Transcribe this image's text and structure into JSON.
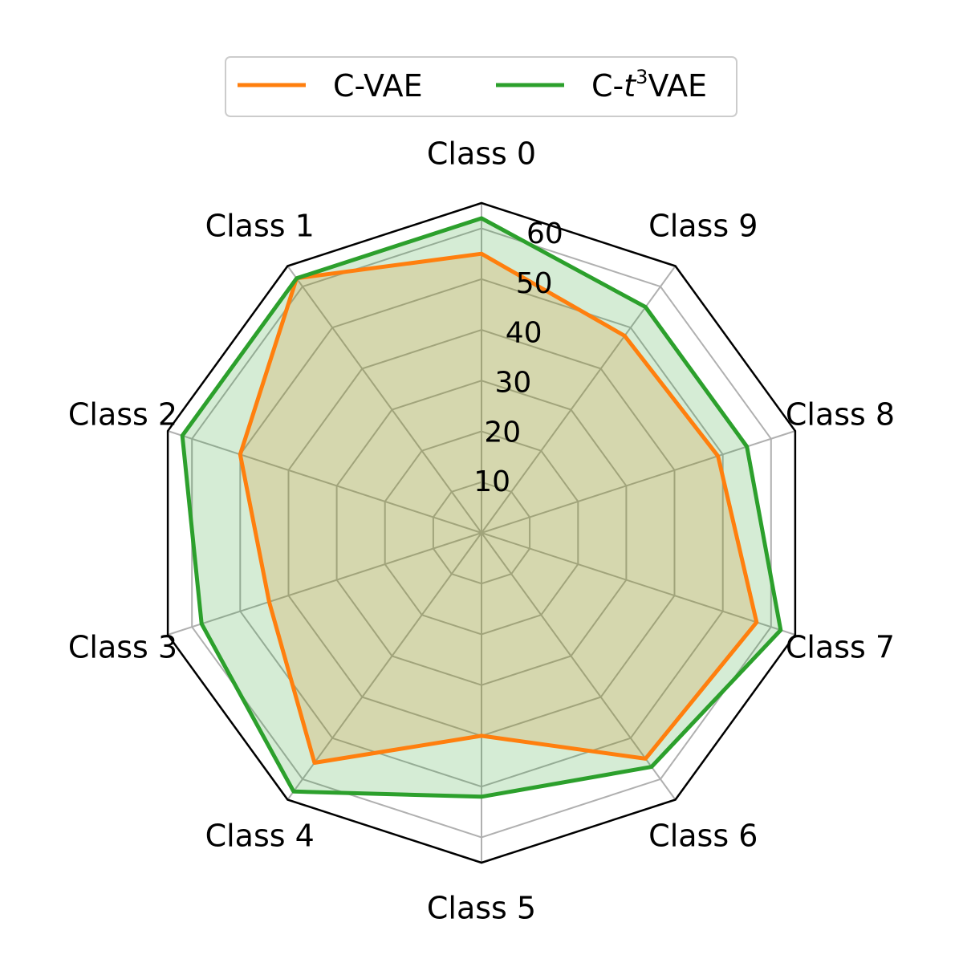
{
  "chart_data": {
    "type": "radar",
    "categories": [
      "Class 0",
      "Class 1",
      "Class 2",
      "Class 3",
      "Class 4",
      "Class 5",
      "Class 6",
      "Class 7",
      "Class 8",
      "Class 9"
    ],
    "rlim": [
      0,
      65
    ],
    "rticks": [
      "10",
      "20",
      "30",
      "40",
      "50",
      "60"
    ],
    "rtick_values": [
      10,
      20,
      30,
      40,
      50,
      60
    ],
    "grid": true,
    "legend_position": "top-center",
    "series": [
      {
        "name": "C-VAE",
        "color": "#ff7f0e",
        "values": [
          55,
          62,
          50,
          44,
          56,
          40,
          55,
          57,
          49,
          48
        ]
      },
      {
        "name": "C-t3VAE",
        "legend_prefix": "C-",
        "legend_italic": "t",
        "legend_sup": "3",
        "legend_suffix": "VAE",
        "color": "#2ca02c",
        "fill": "#2ca02c",
        "values": [
          62,
          62,
          62,
          58,
          63,
          52,
          57,
          62,
          55,
          55
        ]
      }
    ]
  }
}
